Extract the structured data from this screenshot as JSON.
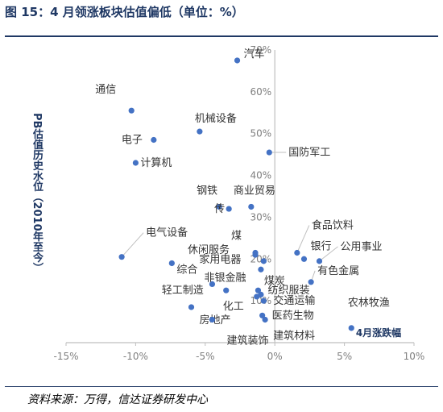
{
  "figure": {
    "title": "图 15：4 月领涨板块估值偏低（单位：%）",
    "source": "资料来源：万得，信达证券研发中心"
  },
  "chart_data": {
    "type": "scatter",
    "xlabel": "4月涨跌幅",
    "ylabel": "PB估值历史水位（2010年至今）",
    "xlim": [
      -15,
      10
    ],
    "ylim": [
      0,
      70
    ],
    "x_ticks": [
      "-15%",
      "-10%",
      "-5%",
      "0%",
      "5%",
      "10%"
    ],
    "y_ticks": [
      "0%",
      "10%",
      "20%",
      "30%",
      "40%",
      "50%",
      "60%",
      "70%"
    ],
    "grid": false,
    "point_color": "#4472c4",
    "points": [
      {
        "name": "汽车",
        "x": -2.7,
        "y": 67.5
      },
      {
        "name": "通信",
        "x": -10.3,
        "y": 55.5
      },
      {
        "name": "机械设备",
        "x": -5.4,
        "y": 50.5
      },
      {
        "name": "电子",
        "x": -8.7,
        "y": 48.5
      },
      {
        "name": "国防军工",
        "x": -0.4,
        "y": 45.5
      },
      {
        "name": "计算机",
        "x": -10.0,
        "y": 43.0
      },
      {
        "name": "钢铁",
        "x": -4.0,
        "y": 32.5
      },
      {
        "name": "商业贸易",
        "x": -1.7,
        "y": 32.5
      },
      {
        "name": "传",
        "x": -3.3,
        "y": 32.0
      },
      {
        "name": "电气设备",
        "x": -11.0,
        "y": 20.5
      },
      {
        "name": "煤",
        "x": -1.4,
        "y": 21.5
      },
      {
        "name": "休闲服务",
        "x": -1.4,
        "y": 21.0
      },
      {
        "name": "食品饮料",
        "x": 1.6,
        "y": 21.5
      },
      {
        "name": "银行",
        "x": 2.1,
        "y": 20.0
      },
      {
        "name": "公用事业",
        "x": 3.2,
        "y": 19.5
      },
      {
        "name": "综合",
        "x": -7.4,
        "y": 19.0
      },
      {
        "name": "家用电器",
        "x": -0.8,
        "y": 19.5
      },
      {
        "name": "煤炭",
        "x": -1.0,
        "y": 17.5
      },
      {
        "name": "有色金属",
        "x": 2.6,
        "y": 14.5
      },
      {
        "name": "非银金融",
        "x": -4.5,
        "y": 14.0
      },
      {
        "name": "轻工制造",
        "x": -3.5,
        "y": 12.5
      },
      {
        "name": "纺织服装",
        "x": -1.2,
        "y": 12.5
      },
      {
        "name": "农林牧渔",
        "x": -1.0,
        "y": 11.5
      },
      {
        "name": "化工",
        "x": -1.3,
        "y": 11.0
      },
      {
        "name": "交通运输",
        "x": -0.8,
        "y": 10.0
      },
      {
        "name": "房地产",
        "x": -6.0,
        "y": 8.5
      },
      {
        "name": "医药生物",
        "x": -0.9,
        "y": 6.5
      },
      {
        "name": "建筑材料",
        "x": -0.7,
        "y": 5.5
      },
      {
        "name": "建筑装饰",
        "x": -4.5,
        "y": 5.5
      },
      {
        "name": "",
        "x": 5.5,
        "y": 3.5
      }
    ]
  }
}
